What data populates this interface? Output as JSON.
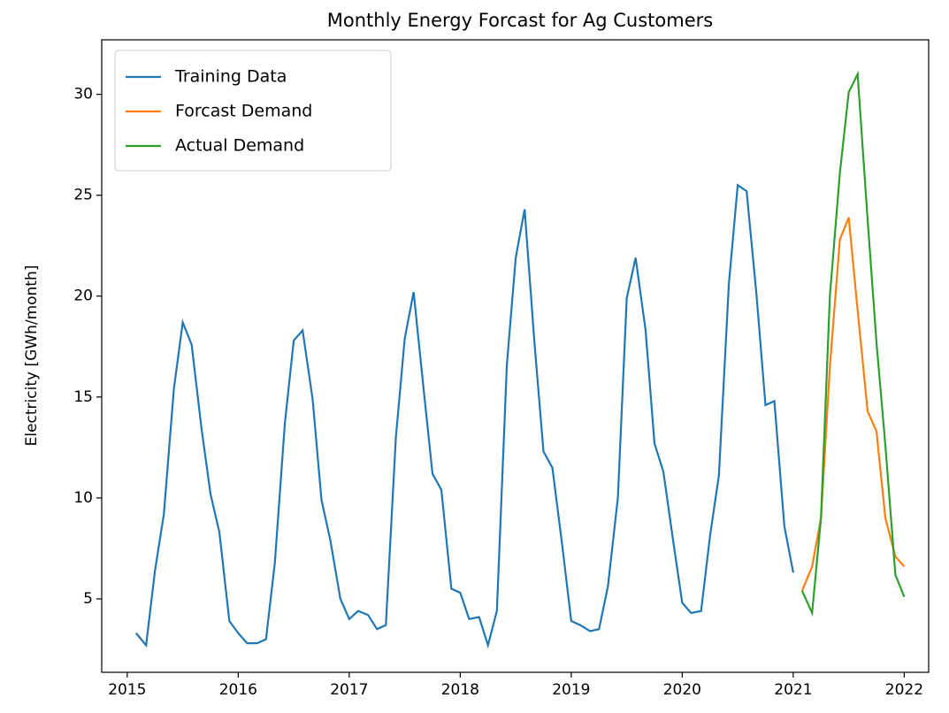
{
  "chart_data": {
    "type": "line",
    "title": "Monthly Energy Forcast for Ag Customers",
    "y_label": "Electricity [GWh/month]",
    "xlim": [
      2014.77,
      2022.22
    ],
    "ylim": [
      1.36,
      32.7
    ],
    "xticks": [
      2015,
      2016,
      2017,
      2018,
      2019,
      2020,
      2021,
      2022
    ],
    "yticks": [
      5,
      10,
      15,
      20,
      25,
      30
    ],
    "legend": "upper left",
    "series": [
      {
        "name": "Training Data",
        "color": "#1f77b4",
        "x": [
          2015.08,
          2015.17,
          2015.25,
          2015.33,
          2015.42,
          2015.5,
          2015.58,
          2015.67,
          2015.75,
          2015.83,
          2015.92,
          2016.0,
          2016.08,
          2016.17,
          2016.25,
          2016.33,
          2016.42,
          2016.5,
          2016.58,
          2016.67,
          2016.75,
          2016.83,
          2016.92,
          2017.0,
          2017.08,
          2017.17,
          2017.25,
          2017.33,
          2017.42,
          2017.5,
          2017.58,
          2017.67,
          2017.75,
          2017.83,
          2017.92,
          2018.0,
          2018.08,
          2018.17,
          2018.25,
          2018.33,
          2018.42,
          2018.5,
          2018.58,
          2018.67,
          2018.75,
          2018.83,
          2018.92,
          2019.0,
          2019.08,
          2019.17,
          2019.25,
          2019.33,
          2019.42,
          2019.5,
          2019.58,
          2019.67,
          2019.75,
          2019.83,
          2019.92,
          2020.0,
          2020.08,
          2020.17,
          2020.25,
          2020.33,
          2020.42,
          2020.5,
          2020.58,
          2020.67,
          2020.75,
          2020.83,
          2020.92,
          2021.0
        ],
        "values": [
          3.3,
          2.7,
          6.4,
          9.2,
          15.4,
          18.7,
          17.6,
          13.4,
          10.2,
          8.3,
          3.9,
          3.3,
          2.8,
          2.8,
          3.0,
          6.8,
          13.7,
          17.8,
          18.3,
          14.9,
          9.9,
          7.9,
          5.0,
          4.0,
          4.4,
          4.2,
          3.5,
          3.7,
          13.0,
          17.9,
          20.2,
          15.4,
          11.2,
          10.4,
          5.5,
          5.3,
          4.0,
          4.1,
          2.7,
          4.4,
          16.6,
          21.9,
          24.3,
          17.6,
          12.3,
          11.5,
          7.6,
          3.9,
          3.7,
          3.4,
          3.5,
          5.6,
          10.0,
          19.9,
          21.9,
          18.3,
          12.7,
          11.3,
          7.8,
          4.8,
          4.3,
          4.4,
          8.1,
          11.1,
          20.6,
          25.5,
          25.2,
          20.0,
          14.6,
          14.8,
          8.6,
          6.3
        ]
      },
      {
        "name": "Forcast Demand",
        "color": "#ff7f0e",
        "x": [
          2021.08,
          2021.17,
          2021.25,
          2021.33,
          2021.42,
          2021.5,
          2021.58,
          2021.67,
          2021.75,
          2021.83,
          2021.92,
          2022.0
        ],
        "values": [
          5.4,
          6.6,
          9.0,
          16.5,
          22.8,
          23.9,
          19.3,
          14.3,
          13.3,
          9.0,
          7.1,
          6.6
        ]
      },
      {
        "name": "Actual Demand",
        "color": "#2ca02c",
        "x": [
          2021.08,
          2021.17,
          2021.25,
          2021.33,
          2021.42,
          2021.5,
          2021.58,
          2021.67,
          2021.75,
          2021.83,
          2021.92,
          2022.0
        ],
        "values": [
          5.4,
          4.3,
          9.0,
          20.0,
          26.1,
          30.1,
          31.0,
          23.8,
          17.7,
          12.6,
          6.2,
          5.1
        ]
      }
    ]
  }
}
